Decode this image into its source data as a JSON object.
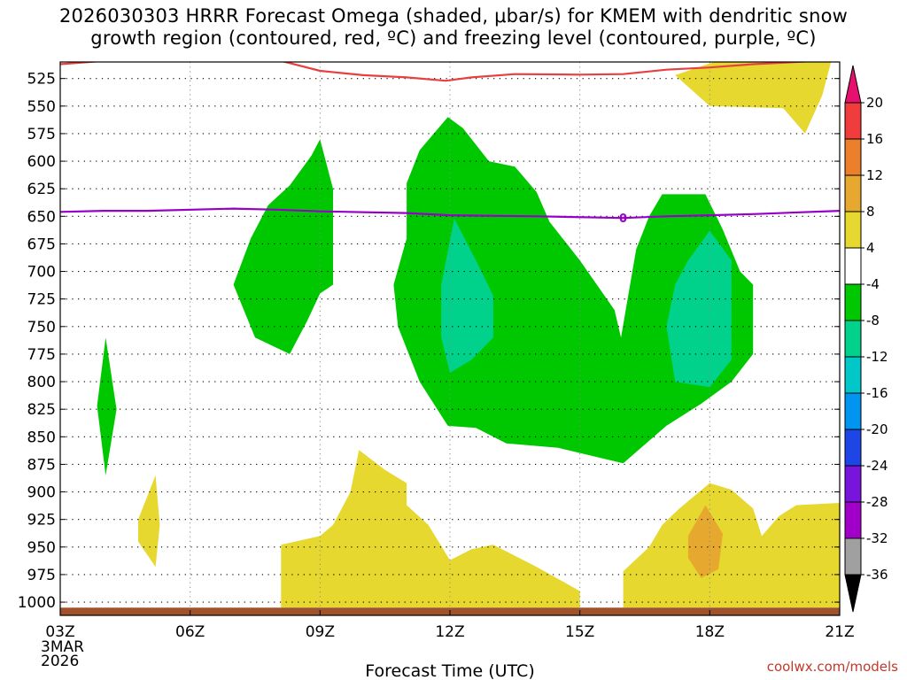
{
  "chart_data": {
    "type": "contour",
    "title_line1": "2026030303 HRRR Forecast Omega (shaded, μbar/s) for KMEM with dendritic snow",
    "title_line2": "growth region (contoured, red, ºC) and freezing level (contoured, purple, ºC)",
    "xlabel": "Forecast Time (UTC)",
    "x_ticks": [
      {
        "hour": 3,
        "label": "03Z"
      },
      {
        "hour": 6,
        "label": "06Z"
      },
      {
        "hour": 9,
        "label": "09Z"
      },
      {
        "hour": 12,
        "label": "12Z"
      },
      {
        "hour": 15,
        "label": "15Z"
      },
      {
        "hour": 18,
        "label": "18Z"
      },
      {
        "hour": 21,
        "label": "21Z"
      }
    ],
    "date_label_1": "3MAR",
    "date_label_2": "2026",
    "x_range": [
      3,
      21
    ],
    "y_ticks": [
      525,
      550,
      575,
      600,
      625,
      650,
      675,
      700,
      725,
      750,
      775,
      800,
      825,
      850,
      875,
      900,
      925,
      950,
      975,
      1000
    ],
    "y_range": [
      510,
      1012
    ],
    "colorbar": {
      "labels": [
        "20",
        "16",
        "12",
        "8",
        "4",
        "-4",
        "-8",
        "-12",
        "-16",
        "-20",
        "-24",
        "-28",
        "-32",
        "-36"
      ],
      "colors": [
        "#e8106e",
        "#f03c3c",
        "#ec7f2c",
        "#e6a82e",
        "#e6d82e",
        "#ffffff",
        "#00c800",
        "#00d28c",
        "#00c8c8",
        "#0096f0",
        "#1e46e6",
        "#7814dc",
        "#a000c8",
        "#a0a0a0",
        "#000000"
      ]
    },
    "fills": [
      {
        "name": "green-left-small",
        "color": "#00c800",
        "points": [
          [
            3.85,
            822
          ],
          [
            4.05,
            760
          ],
          [
            4.3,
            825
          ],
          [
            4.05,
            885
          ]
        ]
      },
      {
        "name": "green-09z",
        "color": "#00c800",
        "points": [
          [
            7.0,
            712
          ],
          [
            7.4,
            670
          ],
          [
            7.8,
            640
          ],
          [
            8.3,
            622
          ],
          [
            8.8,
            595
          ],
          [
            9.0,
            580
          ],
          [
            9.3,
            625
          ],
          [
            9.3,
            712
          ],
          [
            9.0,
            720
          ],
          [
            8.7,
            745
          ],
          [
            8.3,
            775
          ],
          [
            7.5,
            760
          ]
        ]
      },
      {
        "name": "green-12z-16z",
        "color": "#00c800",
        "points": [
          [
            10.7,
            712
          ],
          [
            11.0,
            670
          ],
          [
            11.0,
            620
          ],
          [
            11.3,
            590
          ],
          [
            11.95,
            560
          ],
          [
            12.3,
            570
          ],
          [
            12.9,
            600
          ],
          [
            13.5,
            605
          ],
          [
            14.0,
            628
          ],
          [
            14.3,
            655
          ],
          [
            15.0,
            690
          ],
          [
            15.8,
            735
          ],
          [
            15.95,
            760
          ],
          [
            16.3,
            680
          ],
          [
            16.6,
            650
          ],
          [
            16.9,
            630
          ],
          [
            17.9,
            630
          ],
          [
            18.3,
            662
          ],
          [
            18.7,
            700
          ],
          [
            19.0,
            712
          ],
          [
            19.0,
            775
          ],
          [
            18.5,
            800
          ],
          [
            17.8,
            820
          ],
          [
            17.0,
            840
          ],
          [
            16.0,
            874
          ],
          [
            14.5,
            860
          ],
          [
            13.3,
            856
          ],
          [
            12.6,
            842
          ],
          [
            11.95,
            840
          ],
          [
            11.3,
            800
          ],
          [
            10.8,
            750
          ]
        ]
      },
      {
        "name": "teal-12z",
        "color": "#00d28c",
        "points": [
          [
            11.8,
            712
          ],
          [
            12.1,
            652
          ],
          [
            12.6,
            690
          ],
          [
            13.0,
            722
          ],
          [
            13.0,
            760
          ],
          [
            12.5,
            780
          ],
          [
            12.0,
            792
          ],
          [
            11.8,
            760
          ]
        ]
      },
      {
        "name": "teal-18z",
        "color": "#00d28c",
        "points": [
          [
            17.2,
            712
          ],
          [
            17.5,
            690
          ],
          [
            18.0,
            663
          ],
          [
            18.5,
            690
          ],
          [
            18.5,
            740
          ],
          [
            18.5,
            780
          ],
          [
            18.0,
            805
          ],
          [
            17.2,
            800
          ],
          [
            17.0,
            750
          ]
        ]
      },
      {
        "name": "yellow-top-right",
        "color": "#e6d82e",
        "points": [
          [
            18.1,
            510
          ],
          [
            19.3,
            510
          ],
          [
            20.8,
            510
          ],
          [
            20.6,
            540
          ],
          [
            20.2,
            575
          ],
          [
            19.7,
            552
          ],
          [
            18.0,
            550
          ],
          [
            17.2,
            522
          ]
        ]
      },
      {
        "name": "yellow-left-small",
        "color": "#e6d82e",
        "points": [
          [
            4.8,
            925
          ],
          [
            5.2,
            885
          ],
          [
            5.3,
            930
          ],
          [
            5.2,
            968
          ],
          [
            4.8,
            945
          ]
        ]
      },
      {
        "name": "yellow-bottom-mid",
        "color": "#e6d82e",
        "points": [
          [
            8.1,
            948
          ],
          [
            9.0,
            940
          ],
          [
            9.3,
            930
          ],
          [
            9.7,
            900
          ],
          [
            9.9,
            862
          ],
          [
            10.5,
            880
          ],
          [
            11.0,
            892
          ],
          [
            11.0,
            912
          ],
          [
            11.5,
            930
          ],
          [
            12.0,
            962
          ],
          [
            12.5,
            952
          ],
          [
            13.0,
            948
          ],
          [
            14.0,
            968
          ],
          [
            15.0,
            990
          ],
          [
            15.0,
            1005
          ],
          [
            8.1,
            1005
          ]
        ]
      },
      {
        "name": "yellow-bottom-right",
        "color": "#e6d82e",
        "points": [
          [
            16.0,
            972
          ],
          [
            16.6,
            950
          ],
          [
            16.9,
            930
          ],
          [
            17.3,
            915
          ],
          [
            18.0,
            892
          ],
          [
            18.5,
            898
          ],
          [
            19.0,
            915
          ],
          [
            19.2,
            940
          ],
          [
            19.6,
            922
          ],
          [
            20.0,
            912
          ],
          [
            21.0,
            910
          ],
          [
            21.0,
            1005
          ],
          [
            16.0,
            1005
          ]
        ]
      },
      {
        "name": "orange-18z",
        "color": "#e6a82e",
        "points": [
          [
            17.5,
            940
          ],
          [
            17.9,
            912
          ],
          [
            18.3,
            938
          ],
          [
            18.2,
            970
          ],
          [
            17.8,
            978
          ],
          [
            17.5,
            960
          ]
        ]
      }
    ],
    "freezing_line": {
      "color": "#9600c8",
      "points": [
        [
          3,
          646
        ],
        [
          4,
          645
        ],
        [
          5,
          645
        ],
        [
          7,
          643
        ],
        [
          8,
          644
        ],
        [
          9,
          645.5
        ],
        [
          11,
          647
        ],
        [
          12,
          649
        ],
        [
          14,
          650
        ],
        [
          16,
          651.5
        ],
        [
          17,
          650
        ],
        [
          18,
          649
        ],
        [
          19,
          648
        ],
        [
          21,
          645
        ]
      ],
      "label": "0",
      "label_hour": 16.0
    },
    "dendritic_line": {
      "color": "#e84040",
      "points": [
        [
          3,
          512
        ],
        [
          4,
          509
        ],
        [
          5,
          508
        ],
        [
          6,
          508
        ],
        [
          7,
          508
        ],
        [
          8,
          508
        ],
        [
          9,
          518
        ],
        [
          10,
          522
        ],
        [
          11,
          524
        ],
        [
          11.9,
          527
        ],
        [
          12.5,
          524
        ],
        [
          13.5,
          521
        ],
        [
          15,
          521.5
        ],
        [
          16,
          521
        ],
        [
          17,
          517
        ],
        [
          18,
          515
        ],
        [
          19,
          512
        ],
        [
          21,
          508
        ]
      ]
    },
    "surface_bar_color": "#a0522d"
  },
  "credit": "coolwx.com/models"
}
